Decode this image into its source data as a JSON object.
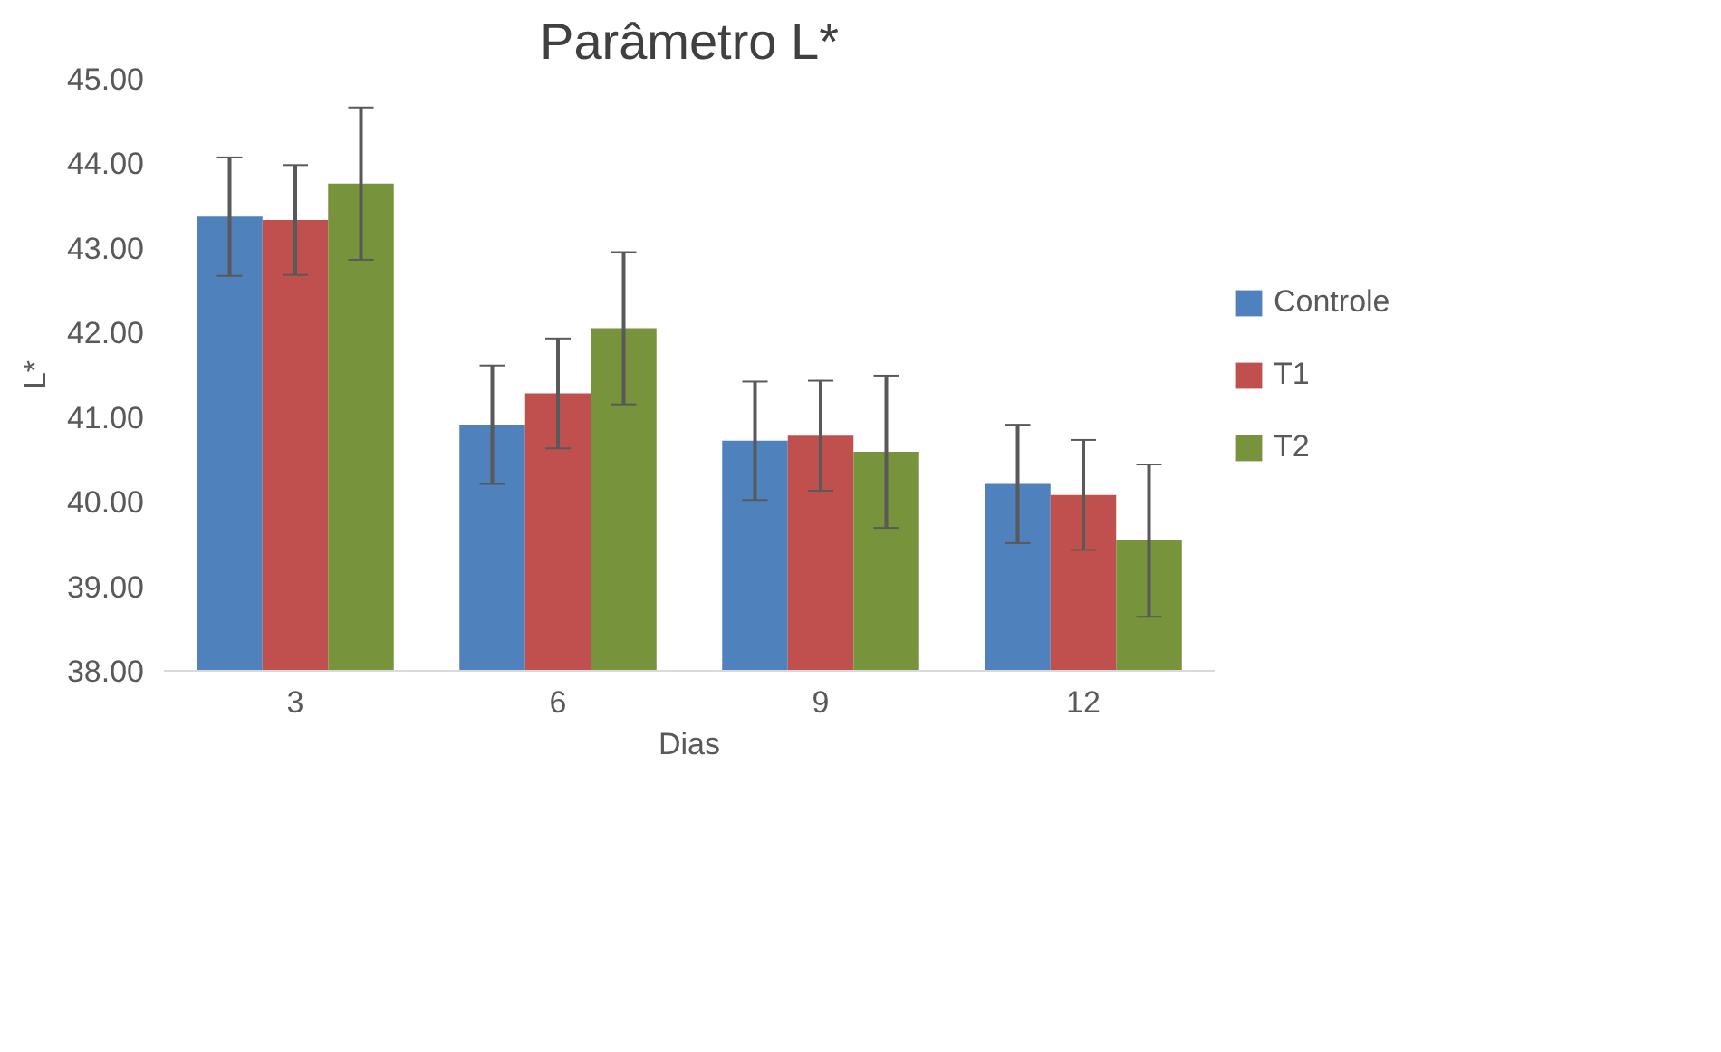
{
  "chart_data": {
    "type": "bar",
    "title": "Parâmetro L*",
    "xlabel": "Dias",
    "ylabel": "L*",
    "categories": [
      "3",
      "6",
      "9",
      "12"
    ],
    "series": [
      {
        "name": "Controle",
        "color": "#4f81bd",
        "values": [
          43.37,
          40.91,
          40.72,
          40.21
        ],
        "errors": [
          0.7,
          0.7,
          0.7,
          0.7
        ]
      },
      {
        "name": "T1",
        "color": "#c0504d",
        "values": [
          43.33,
          41.28,
          40.78,
          40.08
        ],
        "errors": [
          0.65,
          0.65,
          0.65,
          0.65
        ]
      },
      {
        "name": "T2",
        "color": "#77933c",
        "values": [
          43.76,
          42.05,
          40.59,
          39.54
        ],
        "errors": [
          0.9,
          0.9,
          0.9,
          0.9
        ]
      }
    ],
    "ylim": [
      38,
      45
    ],
    "yticks": [
      {
        "value": 38,
        "label": "38.00"
      },
      {
        "value": 39,
        "label": "39.00"
      },
      {
        "value": 40,
        "label": "40.00"
      },
      {
        "value": 41,
        "label": "41.00"
      },
      {
        "value": 42,
        "label": "42.00"
      },
      {
        "value": 43,
        "label": "43.00"
      },
      {
        "value": 44,
        "label": "44.00"
      },
      {
        "value": 45,
        "label": "45.00"
      }
    ],
    "grid": false,
    "legend": "right"
  }
}
